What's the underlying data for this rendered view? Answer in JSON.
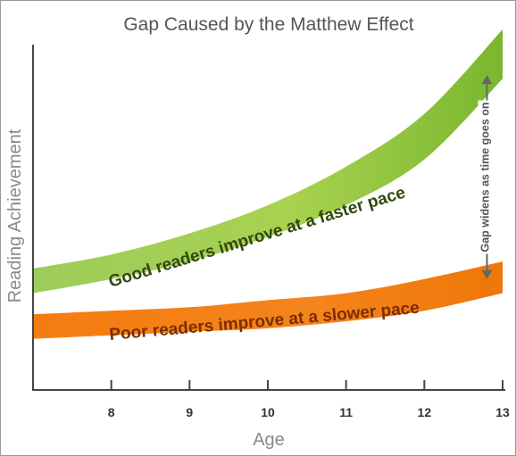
{
  "chart_data": {
    "type": "area",
    "title": "Gap Caused by the Matthew Effect",
    "xlabel": "Age",
    "ylabel": "Reading Achievement",
    "x_ticks": [
      8,
      9,
      10,
      11,
      12,
      13
    ],
    "xlim": [
      7.0,
      13.0
    ],
    "ylim": [
      0,
      100
    ],
    "grid": false,
    "legend": "none",
    "series": [
      {
        "name": "Good readers improve at a faster pace",
        "color": "#8cc63f",
        "x": [
          7.0,
          8.0,
          9.0,
          10.0,
          11.0,
          12.0,
          13.0
        ],
        "lower": [
          25,
          29,
          34,
          41,
          50,
          63,
          86
        ],
        "upper": [
          32,
          36,
          42,
          50,
          61,
          76,
          100
        ]
      },
      {
        "name": "Poor readers improve at a slower pace",
        "color": "#f57f17",
        "x": [
          7.0,
          8.0,
          9.0,
          10.0,
          11.0,
          12.0,
          13.0
        ],
        "lower": [
          12,
          13,
          14,
          15,
          17,
          20,
          25
        ],
        "upper": [
          19,
          20,
          21,
          23,
          25,
          29,
          34
        ]
      }
    ],
    "annotations": [
      {
        "text": "Gap widens as time goes on",
        "x": 12.8,
        "y_from": 29,
        "y_to": 87
      }
    ]
  }
}
